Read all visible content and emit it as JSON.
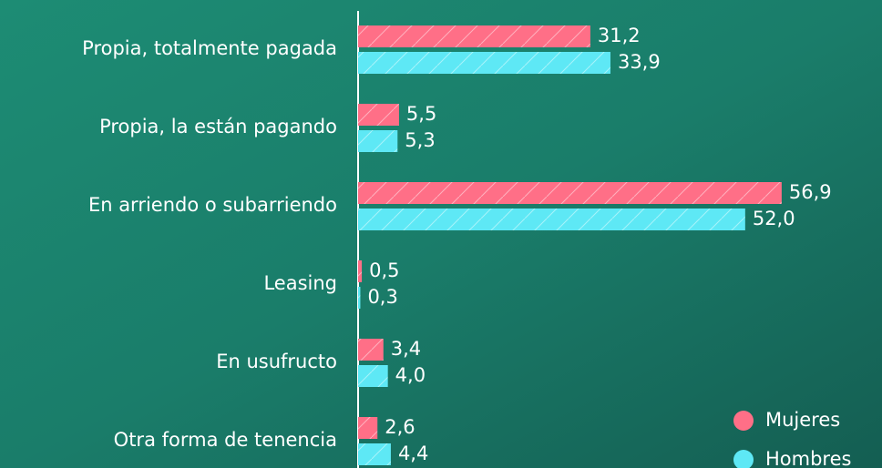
{
  "chart_data": {
    "type": "bar",
    "orientation": "horizontal",
    "categories": [
      "Propia, totalmente pagada",
      "Propia, la están pagando",
      "En arriendo o subarriendo",
      "Leasing",
      "En usufructo",
      "Otra forma de tenencia"
    ],
    "series": [
      {
        "name": "Mujeres",
        "color": "#ff6f87",
        "values": [
          31.2,
          5.5,
          56.9,
          0.5,
          3.4,
          2.6
        ],
        "value_labels": [
          "31,2",
          "5,5",
          "56,9",
          "0,5",
          "3,4",
          "2,6"
        ]
      },
      {
        "name": "Hombres",
        "color": "#5ee8f5",
        "values": [
          33.9,
          5.3,
          52.0,
          0.3,
          4.0,
          4.4
        ],
        "value_labels": [
          "33,9",
          "5,3",
          "52,0",
          "0,3",
          "4,0",
          "4,4"
        ]
      }
    ],
    "legend": "bottom-right"
  }
}
